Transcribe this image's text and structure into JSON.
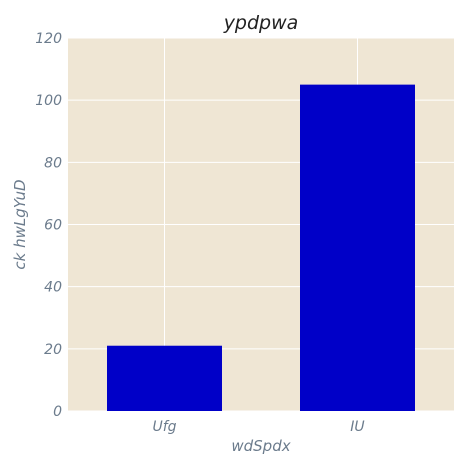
{
  "chart_data": {
    "type": "bar",
    "title": "ypdpwa",
    "xlabel": "wdSpdx",
    "ylabel": "ck  hwLgYuD",
    "categories": [
      "Ufg",
      "IU"
    ],
    "values": [
      21,
      105
    ],
    "ylim": [
      0,
      120
    ],
    "yticks": [
      0,
      20,
      40,
      60,
      80,
      100,
      120
    ],
    "grid": true,
    "legend": "none",
    "colors": {
      "bar": "#0000c8",
      "plot_background": "#efe6d4",
      "grid": "#ffffff",
      "tick_text": "#6b7b8c",
      "title_text": "#222222"
    }
  }
}
